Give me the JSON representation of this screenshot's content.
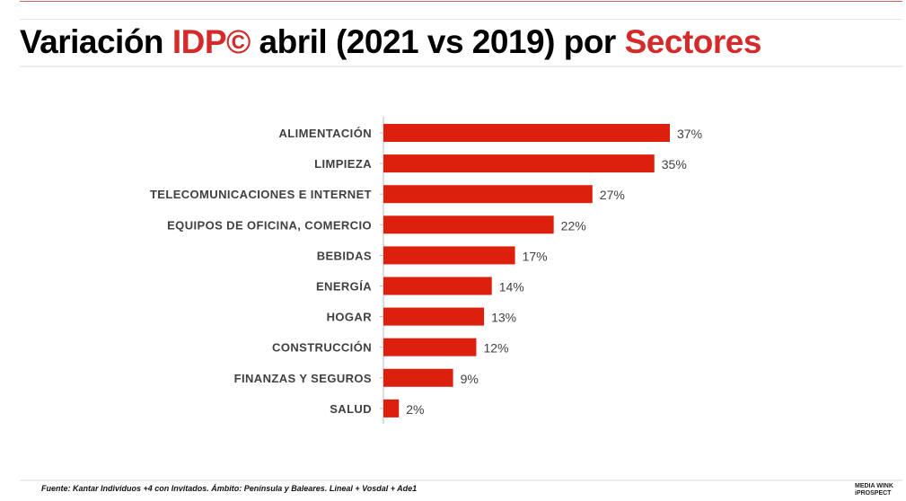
{
  "header": {
    "title_parts": [
      "Variación ",
      "IDP©",
      " abril (2021 vs 2019) por ",
      "Sectores"
    ]
  },
  "colors": {
    "accent": "#d42a2a",
    "bar": "#dd1f0e"
  },
  "chart_data": {
    "type": "bar",
    "orientation": "horizontal",
    "title": "Variación IDP© abril (2021 vs 2019) por Sectores",
    "categories": [
      "ALIMENTACIÓN",
      "LIMPIEZA",
      "TELECOMUNICACIONES E INTERNET",
      "EQUIPOS DE OFICINA, COMERCIO",
      "BEBIDAS",
      "ENERGÍA",
      "HOGAR",
      "CONSTRUCCIÓN",
      "FINANZAS Y SEGUROS",
      "SALUD"
    ],
    "values": [
      37,
      35,
      27,
      22,
      17,
      14,
      13,
      12,
      9,
      2
    ],
    "value_labels": [
      "37%",
      "35%",
      "27%",
      "22%",
      "17%",
      "14%",
      "13%",
      "12%",
      "9%",
      "2%"
    ],
    "unit": "%",
    "xlim": [
      0,
      40
    ],
    "grid": false,
    "legend": "none"
  },
  "footer": {
    "source": "Fuente: Kantar Individuos +4 con Invitados. Ámbito: Península y Baleares. Lineal + Vosdal + Ade1",
    "logo_line1": "MEDIA WINK",
    "logo_line2": "iPROSPECT"
  }
}
